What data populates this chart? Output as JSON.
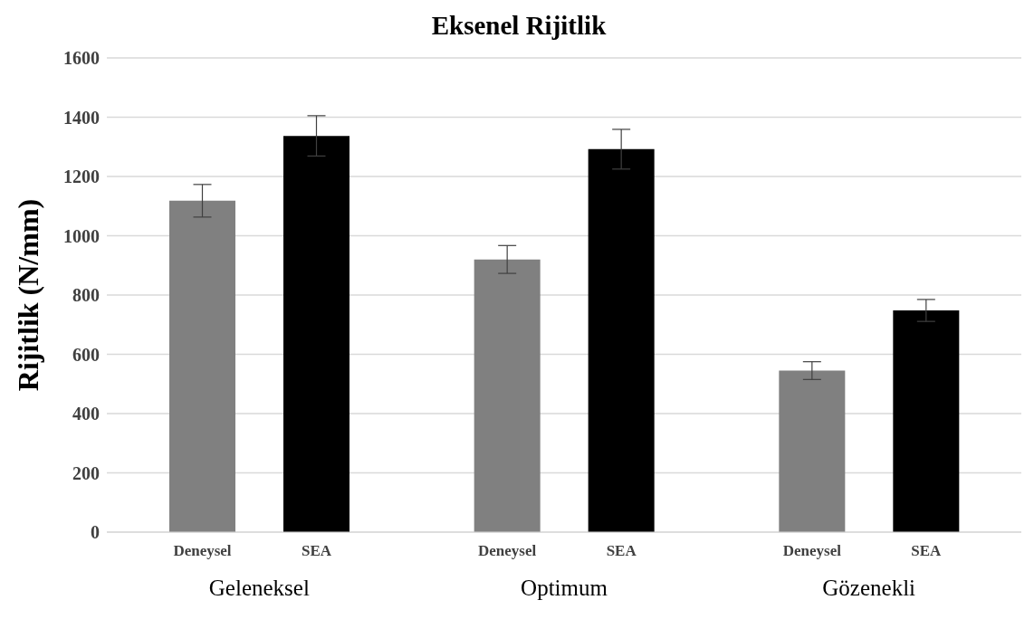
{
  "chart_data": {
    "type": "bar",
    "title": "Eksenel Rijitlik",
    "ylabel": "Rijitlik (N/mm)",
    "categories": [
      "Geleneksel",
      "Optimum",
      "Gözenekli"
    ],
    "series": [
      {
        "name": "Deneysel",
        "color": "#808080",
        "values": [
          1118,
          920,
          545
        ],
        "errors": [
          55,
          47,
          30
        ]
      },
      {
        "name": "SEA",
        "color": "#000000",
        "values": [
          1337,
          1292,
          748
        ],
        "errors": [
          68,
          67,
          37
        ]
      }
    ],
    "ylim": [
      0,
      1600
    ],
    "yticks": [
      0,
      200,
      400,
      600,
      800,
      1000,
      1200,
      1400,
      1600
    ],
    "grid": "y"
  }
}
